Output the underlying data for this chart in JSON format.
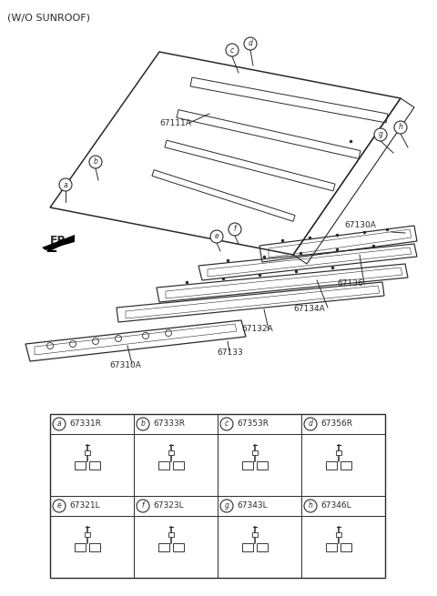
{
  "title_text": "(W/O SUNROOF)",
  "bg_color": "#ffffff",
  "line_color": "#2a2a2a",
  "figsize": [
    4.8,
    6.55
  ],
  "dpi": 100,
  "grid_parts": [
    {
      "letter": "a",
      "code": "67331R",
      "row": 0,
      "col": 0
    },
    {
      "letter": "b",
      "code": "67333R",
      "row": 0,
      "col": 1
    },
    {
      "letter": "c",
      "code": "67353R",
      "row": 0,
      "col": 2
    },
    {
      "letter": "d",
      "code": "67356R",
      "row": 0,
      "col": 3
    },
    {
      "letter": "e",
      "code": "67321L",
      "row": 1,
      "col": 0
    },
    {
      "letter": "f",
      "code": "67323L",
      "row": 1,
      "col": 1
    },
    {
      "letter": "g",
      "code": "67343L",
      "row": 1,
      "col": 2
    },
    {
      "letter": "h",
      "code": "67346L",
      "row": 1,
      "col": 3
    }
  ]
}
